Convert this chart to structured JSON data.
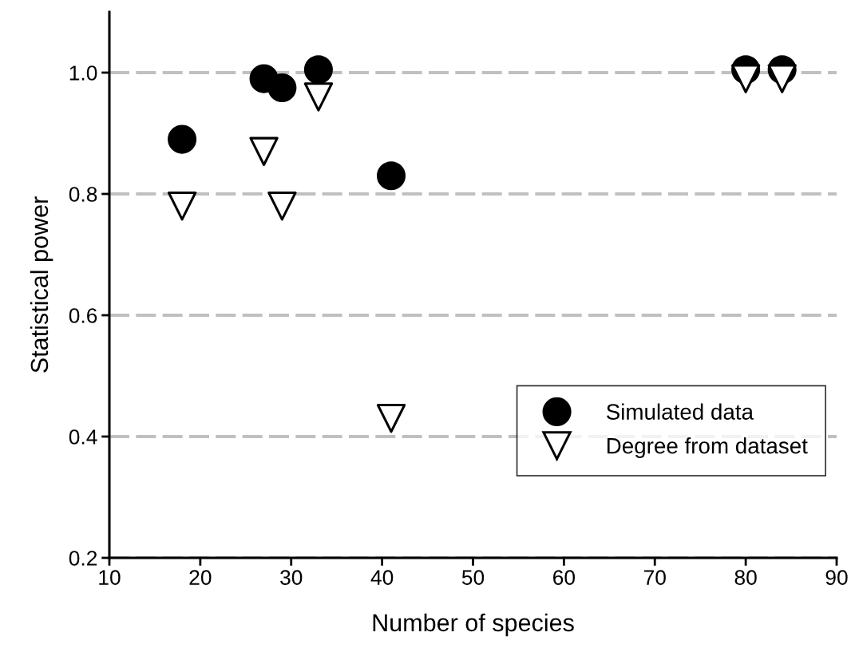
{
  "chart_data": {
    "type": "scatter",
    "xlabel": "Number of species",
    "ylabel": "Statistical power",
    "xlim": [
      10,
      90
    ],
    "xticks": [
      10,
      20,
      30,
      40,
      50,
      60,
      70,
      80,
      90
    ],
    "ylim": [
      0.2,
      1.1
    ],
    "yticks": [
      0.2,
      0.4,
      0.6,
      0.8,
      {
        "value": 1,
        "label": "1.0"
      }
    ],
    "grid": "y",
    "legend": "bottom right",
    "series": [
      {
        "name": "Simulated data",
        "color": "#000000",
        "marker": "circle",
        "x": [
          18,
          27,
          29,
          33,
          41,
          80,
          84
        ],
        "values": [
          0.89,
          0.99,
          0.975,
          1.005,
          0.83,
          1.005,
          1.005
        ]
      },
      {
        "name": "Degree from dataset",
        "color": "#000000",
        "marker": "triangle",
        "x": [
          18,
          27,
          29,
          33,
          41,
          80,
          84
        ],
        "values": [
          0.78,
          0.87,
          0.78,
          0.96,
          0.43,
          0.99,
          0.99
        ]
      }
    ]
  }
}
